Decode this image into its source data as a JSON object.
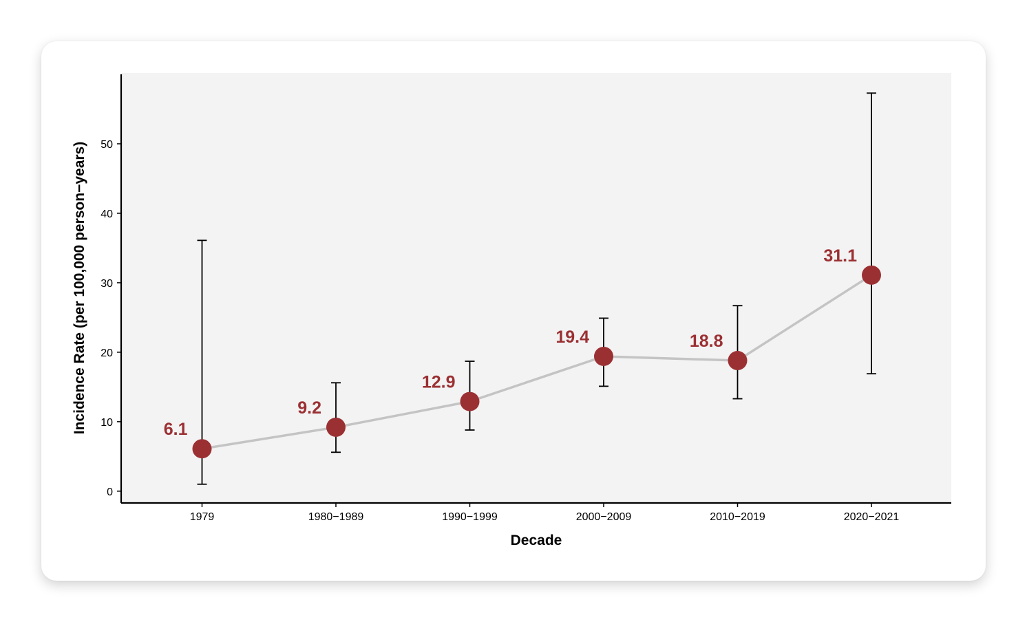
{
  "chart_data": {
    "type": "line",
    "title": "",
    "xlabel": "Decade",
    "ylabel": "Incidence Rate (per 100,000 person−years)",
    "categories": [
      "1979",
      "1980−1989",
      "1990−1999",
      "2000−2009",
      "2010−2019",
      "2020−2021"
    ],
    "series": [
      {
        "values": [
          6.1,
          9.2,
          12.9,
          19.4,
          18.8,
          31.1
        ],
        "ci_lower": [
          1.0,
          5.6,
          8.8,
          15.1,
          13.3,
          16.9
        ],
        "ci_upper": [
          36.1,
          15.6,
          18.7,
          24.9,
          26.7,
          57.3
        ]
      }
    ],
    "data_labels": [
      "6.1",
      "9.2",
      "12.9",
      "19.4",
      "18.8",
      "31.1"
    ],
    "ylim": [
      -1.7,
      60.2
    ],
    "yticks": [
      0,
      10,
      20,
      30,
      40,
      50
    ],
    "grid": false,
    "legend": "none",
    "colors": {
      "point": "#9b3033",
      "label": "#9b3033",
      "line": "#c4c4c4",
      "error_bar": "#000000",
      "panel": "#f3f3f3"
    }
  }
}
